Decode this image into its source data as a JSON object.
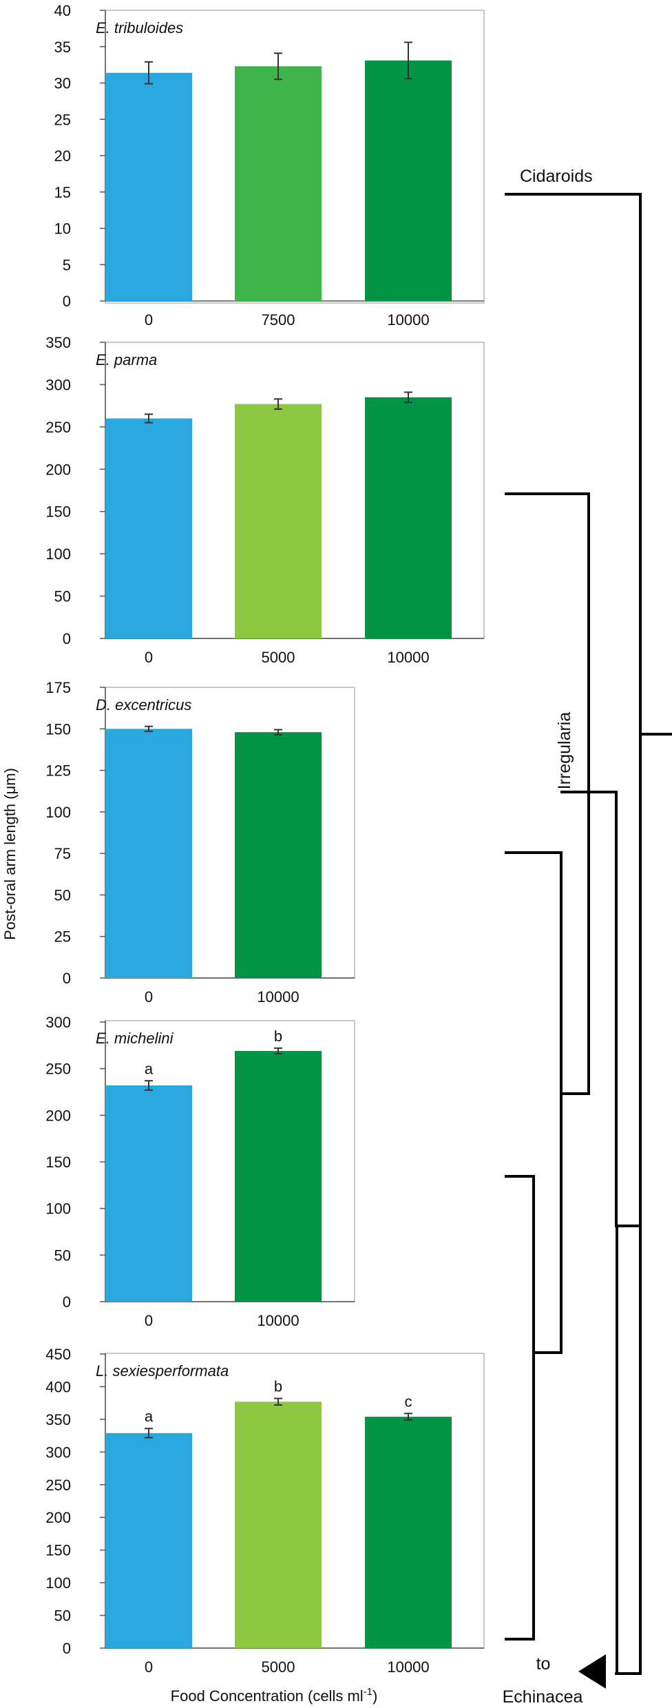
{
  "figure": {
    "ylabel": "Post-oral arm length (μm)",
    "xlabel_main": "Food Concentration (cells ml",
    "xlabel_sup": "-1",
    "xlabel_close": ")"
  },
  "colors": {
    "blue": "#29a8e0",
    "light_green": "#3db54a",
    "lime_green": "#8dc63f",
    "dark_green": "#009444",
    "frame": "#c8c8c8",
    "axis": "#555555",
    "tree": "#000000"
  },
  "chart_data": [
    {
      "type": "bar",
      "title": "E. tribuloides",
      "categories": [
        "0",
        "7500",
        "10000"
      ],
      "values": [
        31.4,
        32.3,
        33.1
      ],
      "errors": [
        1.5,
        1.8,
        2.5
      ],
      "colors": [
        "#29a8e0",
        "#3db54a",
        "#009444"
      ],
      "ylim": [
        0,
        40
      ],
      "yticks": [
        "0",
        "5",
        "10",
        "15",
        "20",
        "25",
        "30",
        "35",
        "40"
      ],
      "sig": [
        "",
        "",
        ""
      ],
      "xlabel": "",
      "ylabel": ""
    },
    {
      "type": "bar",
      "title": "E. parma",
      "categories": [
        "0",
        "5000",
        "10000"
      ],
      "values": [
        260,
        277,
        285
      ],
      "errors": [
        5,
        6,
        6
      ],
      "colors": [
        "#29a8e0",
        "#8dc63f",
        "#009444"
      ],
      "ylim": [
        0,
        350
      ],
      "yticks": [
        "0",
        "50",
        "100",
        "150",
        "200",
        "250",
        "300",
        "350"
      ],
      "sig": [
        "",
        "",
        ""
      ],
      "xlabel": "",
      "ylabel": ""
    },
    {
      "type": "bar",
      "title": "D. excentricus",
      "categories": [
        "0",
        "10000"
      ],
      "values": [
        150,
        148
      ],
      "errors": [
        1.5,
        1.5
      ],
      "colors": [
        "#29a8e0",
        "#009444"
      ],
      "ylim": [
        0,
        175
      ],
      "yticks": [
        "0",
        "25",
        "50",
        "75",
        "100",
        "125",
        "150",
        "175"
      ],
      "sig": [
        "",
        ""
      ],
      "xlabel": "",
      "ylabel": ""
    },
    {
      "type": "bar",
      "title": "E. michelini",
      "categories": [
        "0",
        "10000"
      ],
      "values": [
        232,
        269
      ],
      "errors": [
        5,
        3
      ],
      "colors": [
        "#29a8e0",
        "#009444"
      ],
      "ylim": [
        0,
        300
      ],
      "yticks": [
        "0",
        "50",
        "100",
        "150",
        "200",
        "250",
        "300"
      ],
      "sig": [
        "a",
        "b"
      ],
      "xlabel": "",
      "ylabel": ""
    },
    {
      "type": "bar",
      "title": "L. sexiesperformata",
      "categories": [
        "0",
        "5000",
        "10000"
      ],
      "values": [
        329,
        377,
        354
      ],
      "errors": [
        7,
        5,
        5
      ],
      "colors": [
        "#29a8e0",
        "#8dc63f",
        "#009444"
      ],
      "ylim": [
        0,
        450
      ],
      "yticks": [
        "0",
        "50",
        "100",
        "150",
        "200",
        "250",
        "300",
        "350",
        "400",
        "450"
      ],
      "sig": [
        "a",
        "b",
        "c"
      ],
      "xlabel": "",
      "ylabel": ""
    }
  ],
  "tree": {
    "labels": {
      "cidaroids": "Cidaroids",
      "irregularia": "Irregularia",
      "to": "to",
      "echinacea": "Echinacea"
    }
  }
}
